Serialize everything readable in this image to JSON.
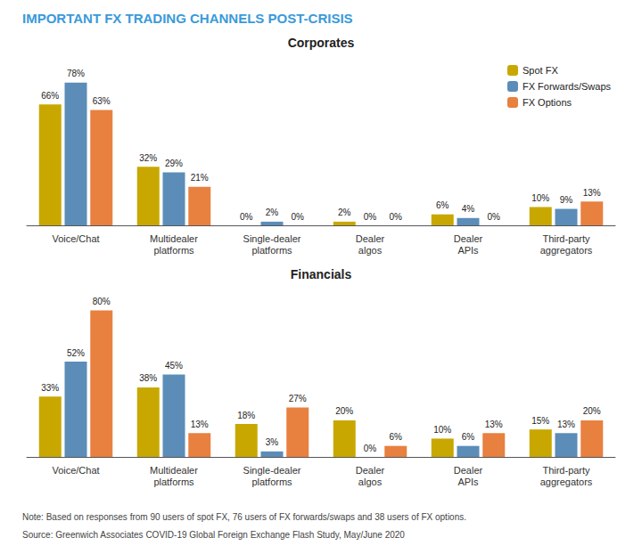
{
  "title": "IMPORTANT FX TRADING CHANNELS POST-CRISIS",
  "title_color": "#3a9ad9",
  "annotations": [
    "Note: Based on responses from 90 users of spot FX, 76 users of FX forwards/swaps and 38 users of FX options.",
    "Source: Greenwich Associates COVID-19 Global Foreign Exchange Flash Study, May/June 2020"
  ],
  "chart_data": [
    {
      "type": "bar",
      "title": "Corporates",
      "categories": [
        "Voice/Chat",
        "Multidealer\nplatforms",
        "Single-dealer\nplatforms",
        "Dealer\nalgos",
        "Dealer\nAPIs",
        "Third-party\naggregators"
      ],
      "series": [
        {
          "name": "Spot FX",
          "color": "#c8a800",
          "values": [
            66,
            32,
            0,
            2,
            6,
            10
          ],
          "value_labels": [
            "66%",
            "32%",
            "0%",
            "2%",
            "6%",
            "10%"
          ]
        },
        {
          "name": "FX Forwards/Swaps",
          "color": "#5b8db8",
          "values": [
            78,
            29,
            2,
            0,
            4,
            9
          ],
          "value_labels": [
            "78%",
            "29%",
            "2%",
            "0%",
            "4%",
            "9%"
          ]
        },
        {
          "name": "FX Options",
          "color": "#e88040",
          "values": [
            63,
            21,
            0,
            0,
            0,
            13
          ],
          "value_labels": [
            "63%",
            "21%",
            "0%",
            "0%",
            "0%",
            "13%"
          ]
        }
      ],
      "ylim": [
        0,
        90
      ],
      "grid": false,
      "legend": "upper right",
      "data_labels": true,
      "tick_labels": "x"
    },
    {
      "type": "bar",
      "title": "Financials",
      "categories": [
        "Voice/Chat",
        "Multidealer\nplatforms",
        "Single-dealer\nplatforms",
        "Dealer\nalgos",
        "Dealer\nAPIs",
        "Third-party\naggregators"
      ],
      "series": [
        {
          "name": "Spot FX",
          "color": "#c8a800",
          "values": [
            33,
            38,
            18,
            20,
            10,
            15
          ],
          "value_labels": [
            "33%",
            "38%",
            "18%",
            "20%",
            "10%",
            "15%"
          ]
        },
        {
          "name": "FX Forwards/Swaps",
          "color": "#5b8db8",
          "values": [
            52,
            45,
            3,
            0,
            6,
            13
          ],
          "value_labels": [
            "52%",
            "45%",
            "3%",
            "0%",
            "6%",
            "13%"
          ]
        },
        {
          "name": "FX Options",
          "color": "#e88040",
          "values": [
            80,
            13,
            27,
            6,
            13,
            20
          ],
          "value_labels": [
            "80%",
            "13%",
            "27%",
            "6%",
            "13%",
            "20%"
          ]
        }
      ],
      "ylim": [
        0,
        90
      ],
      "grid": false,
      "data_labels": true,
      "tick_labels": "x"
    }
  ]
}
